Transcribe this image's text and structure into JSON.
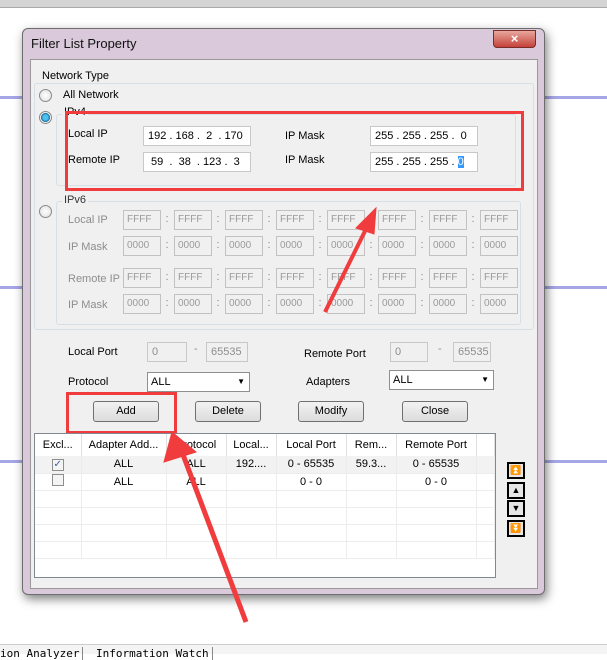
{
  "window": {
    "title": "Filter List Property",
    "close_icon": "×"
  },
  "network_type": {
    "label": "Network Type",
    "all_network": "All Network",
    "ipv4": "IPv4",
    "ipv6": "IPv6",
    "selected": "IPv4"
  },
  "ipv4": {
    "local_ip_label": "Local IP",
    "local_ip": "192 . 168 .  2  . 170",
    "local_mask_label": "IP Mask",
    "local_mask": "255 . 255 . 255 .  0",
    "remote_ip_label": "Remote IP",
    "remote_ip": " 59  .  38  . 123 .  3",
    "remote_mask_label": "IP Mask",
    "remote_mask_prefix": "255 . 255 . 255 . ",
    "remote_mask_selected": "0"
  },
  "ipv6": {
    "local_ip_label": "Local IP",
    "local_mask_label": "IP Mask",
    "remote_ip_label": "Remote IP",
    "remote_mask_label": "IP Mask",
    "ip_value": "FFFF",
    "mask_value": "0000"
  },
  "ports": {
    "local_label": "Local Port",
    "local_from": "0",
    "local_to": "65535",
    "dash": "-",
    "remote_label": "Remote Port",
    "remote_from": "0",
    "remote_to": "65535"
  },
  "protocol": {
    "label": "Protocol",
    "value": "ALL"
  },
  "adapters": {
    "label": "Adapters",
    "value": "ALL"
  },
  "buttons": {
    "add": "Add",
    "delete": "Delete",
    "modify": "Modify",
    "close": "Close"
  },
  "table": {
    "headers": [
      "Excl...",
      "Adapter Add...",
      "Protocol",
      "Local...",
      "Local Port",
      "Rem...",
      "Remote Port"
    ],
    "rows": [
      {
        "checked": true,
        "adapter": "ALL",
        "protocol": "ALL",
        "local": "192....",
        "local_port": "0 - 65535",
        "remote": "59.3...",
        "remote_port": "0 - 65535"
      },
      {
        "checked": false,
        "adapter": "ALL",
        "protocol": "ALL",
        "local": "",
        "local_port": "0 - 0",
        "remote": "",
        "remote_port": "0 - 0"
      }
    ]
  },
  "nav": {
    "top": "⏫",
    "up": "▲",
    "down": "▼",
    "bottom": "⏬"
  },
  "bottom_tabs": [
    "ion Analyzer",
    "Information Watch"
  ],
  "colors": {
    "annotation": "#f03c3c",
    "selection": "#3399ff"
  }
}
